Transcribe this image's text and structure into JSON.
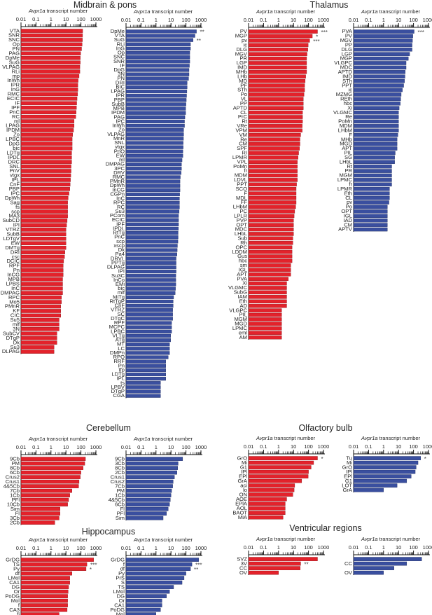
{
  "chart_data": {
    "type": "bar",
    "orientation": "horizontal",
    "x_scale": "log",
    "xlim": [
      0.01,
      1000
    ],
    "tick_labels": [
      "0.01",
      "0.1",
      "1",
      "10",
      "100",
      "1000"
    ],
    "axis_label_gene": "Avpr1a",
    "axis_label_rest": " transcript number",
    "colors": {
      "red": "#e3222b",
      "blue": "#3a4f9f"
    },
    "sections": [
      {
        "title": "Midbrain & pons",
        "panels": [
          {
            "color": "red",
            "labels": [
              "VTA",
              "SNR",
              "SNC",
              "Op",
              "PN",
              "PAG",
              "DpMe",
              "SuG",
              "VLPAG",
              "RLi",
              "mp",
              "InWh",
              "IPR",
              "InG",
              "RMC",
              "ECIC",
              "IF",
              "IPF",
              "PnC",
              "RC",
              "ml",
              "LPAG",
              "IPDM",
              "Zo",
              "LPBC",
              "DpG",
              "bic",
              "LDTg",
              "IPDL",
              "DRC",
              "SNL",
              "PnV",
              "vtgx",
              "IPL",
              "CnF",
              "PBP",
              "IPC",
              "DpWh",
              "Sag",
              "fs",
              "scp",
              "MA3",
              "SubCD",
              "IPI",
              "VTRZ",
              "SubB",
              "LDTgV",
              "EW",
              "DMTg",
              "DRI",
              "csc",
              "DCIC",
              "RPF",
              "Pn",
              "InCG",
              "MPB",
              "LPBS",
              "InC",
              "DMPAG",
              "RPC",
              "Mo5",
              "PMnR",
              "KF",
              "CIC",
              "Su5",
              "mlf",
              "3N",
              "SubCV",
              "DTgP",
              "Dk",
              "Su3",
              "DLPAG"
            ],
            "values": [
              130,
              128,
              125,
              120,
              110,
              95,
              90,
              90,
              85,
              85,
              75,
              65,
              62,
              62,
              60,
              55,
              52,
              50,
              48,
              45,
              35,
              35,
              32,
              28,
              26,
              26,
              26,
              24,
              24,
              24,
              22,
              22,
              21,
              20,
              19,
              18,
              16,
              14,
              13,
              13,
              13,
              13,
              12,
              11,
              10,
              10,
              10,
              10,
              10,
              8.5,
              8,
              7,
              6.5,
              6.5,
              6.5,
              6,
              6,
              6,
              6,
              5,
              5,
              4.5,
              4.5,
              4.5,
              3.5,
              3.5,
              3.5,
              2.5,
              2.5,
              2.5,
              1.6,
              1.6
            ],
            "annotations": []
          },
          {
            "color": "blue",
            "labels": [
              "DpMe",
              "VTA",
              "SuG",
              "RLi",
              "InG",
              "Op",
              "SNC",
              "SNR",
              "IF",
              "DpG",
              "3N",
              "PN",
              "DRI",
              "BIC",
              "LPAG",
              "IPR",
              "PBP",
              "SubB",
              "MPB",
              "IPDM",
              "PAG",
              "IPC",
              "InWh",
              "Zo",
              "VLPAG",
              "MnR",
              "SNL",
              "vtgx",
              "PnO",
              "EW",
              "ml",
              "DMPAG",
              "3PC",
              "DRV",
              "RMC",
              "PMnR",
              "DpWh",
              "InCG",
              "CGPn",
              "InC",
              "RPC",
              "RC",
              "Su3",
              "PCom",
              "ECIC",
              "IPF",
              "IPDL",
              "RtTg",
              "PnC",
              "scp",
              "xscp",
              "Dk",
              "Pa4",
              "DRVL",
              "PPTg",
              "DLPAG",
              "IPI",
              "Su3C",
              "InCo",
              "EMi",
              "bic",
              "mlf",
              "MiTg",
              "RtTgP",
              "CnF",
              "VTRZ",
              "SC",
              "DTgC",
              "RPF",
              "MCPC",
              "LPBC",
              "VLTg",
              "ATg",
              "MT",
              "LC",
              "DMPn",
              "RPO",
              "RRF",
              "Pn",
              "tfp",
              "LDTg",
              "IPL",
              "ts",
              "LPBV",
              "DTgP",
              "CGA"
            ],
            "values": [
              500,
              400,
              300,
              200,
              200,
              180,
              180,
              180,
              170,
              160,
              160,
              150,
              120,
              120,
              115,
              110,
              105,
              100,
              95,
              95,
              85,
              80,
              80,
              70,
              70,
              68,
              65,
              65,
              62,
              62,
              55,
              50,
              50,
              48,
              42,
              40,
              40,
              40,
              38,
              37,
              37,
              37,
              35,
              32,
              32,
              32,
              31,
              30,
              30,
              29,
              27,
              26,
              25,
              22,
              22,
              22,
              22,
              21,
              21,
              21,
              20,
              19,
              15,
              14,
              14,
              13,
              13,
              13,
              11,
              11,
              11,
              9.5,
              9.5,
              8,
              8,
              8,
              6.5,
              4.5,
              4.5,
              4.5,
              4.5,
              4.5,
              2,
              2,
              2,
              2
            ],
            "annotations": [
              {
                "label": "DpMe",
                "stars": "**"
              },
              {
                "label": "SuG",
                "stars": "**"
              }
            ]
          }
        ]
      },
      {
        "title": "Thalamus",
        "panels": [
          {
            "color": "red",
            "labels": [
              "PV",
              "MGP",
              "pv",
              "ic",
              "DLG",
              "MGV",
              "PR",
              "LGP",
              "IMD",
              "MHb",
              "LHb",
              "MD",
              "PF",
              "STh",
              "Po",
              "VL",
              "PP",
              "APTD",
              "CL",
              "PrC",
              "Rt",
              "VRe",
              "VPM",
              "VM",
              "Re",
              "CM",
              "SPF",
              "RI",
              "LPMR",
              "VPL",
              "PoMn",
              "fr",
              "MDM",
              "LDVL",
              "PPT",
              "SCO",
              "F",
              "MDL",
              "FF",
              "LHbM",
              "PC",
              "LPLR",
              "PVP",
              "OPT",
              "MDC",
              "LHbL",
              "Sub",
              "Rh",
              "OPC",
              "LDDM",
              "Gus",
              "hbc",
              "sm",
              "IGL",
              "APT",
              "PVA",
              "Xi",
              "VLGMC",
              "SubG",
              "IAM",
              "Eth",
              "AD",
              "VLGPC",
              "PIL",
              "MGM",
              "MGD",
              "LPMC",
              "eml",
              "AM"
            ],
            "values": [
              400,
              180,
              120,
              95,
              90,
              80,
              75,
              75,
              75,
              75,
              65,
              60,
              55,
              55,
              50,
              45,
              45,
              45,
              40,
              40,
              40,
              38,
              38,
              30,
              27,
              27,
              25,
              22,
              20,
              18,
              18,
              18,
              18,
              18,
              16,
              15,
              15,
              15,
              15,
              14,
              12,
              11,
              10,
              10,
              10,
              10,
              9,
              9,
              8,
              8,
              8,
              8,
              6.5,
              6.5,
              6.5,
              4.5,
              3.5,
              3.5,
              3.5,
              3.5,
              3.5,
              3.5,
              1.6,
              1.6,
              1.6,
              1.6,
              1.6,
              1.6,
              1.6
            ],
            "annotations": [
              {
                "label": "PV",
                "stars": "***"
              },
              {
                "label": "MGP",
                "stars": "*"
              },
              {
                "label": "pv",
                "stars": "***"
              }
            ]
          },
          {
            "color": "blue",
            "labels": [
              "PVA",
              "PV",
              "MGV",
              "PP",
              "DLG",
              "LGP",
              "MGP",
              "VLGPC",
              "MDC",
              "APTD",
              "IMD",
              "STh",
              "PPT",
              "ic",
              "MZMG",
              "REth",
              "hbc",
              "Xi",
              "VLGMC",
              "Re",
              "PoMn",
              "MDM",
              "LHbM",
              "F",
              "MHb",
              "MGD",
              "APT",
              "PIL",
              "SG",
              "LHbL",
              "Rt",
              "PR",
              "MGM",
              "LPMC",
              "fr",
              "LPMR",
              "Eth",
              "CL",
              "pv",
              "Po",
              "OPT",
              "IGL",
              "IAD",
              "CM",
              "APTV"
            ],
            "values": [
              110,
              90,
              85,
              80,
              80,
              55,
              45,
              32,
              32,
              28,
              27,
              25,
              22,
              18,
              15,
              14,
              13,
              11,
              10,
              10,
              10,
              10,
              10,
              9,
              8,
              8,
              8,
              6,
              5.5,
              5.5,
              3.5,
              3.5,
              3.5,
              3.5,
              3.5,
              2.5,
              2.5,
              2.5,
              2.3,
              1.8,
              1.8,
              1.8,
              1.8,
              1.8,
              1.8
            ],
            "annotations": [
              {
                "label": "PVA",
                "stars": "***"
              }
            ]
          }
        ]
      },
      {
        "title": "Cerebellum",
        "panels": [
          {
            "color": "red",
            "labels": [
              "9Cb",
              "PM",
              "8Cb",
              "6Cb",
              "Crus2",
              "Crus1",
              "4&5Cb",
              "7Cb",
              "1Cb",
              "PFl",
              "10Cb",
              "Sim",
              "Fl",
              "3Cb",
              "2Cb"
            ],
            "values": [
              200,
              180,
              140,
              100,
              90,
              75,
              70,
              25,
              18,
              15,
              13,
              4,
              4,
              3.5,
              1.8
            ],
            "annotations": []
          },
          {
            "color": "blue",
            "labels": [
              "9Cb",
              "3Cb",
              "8Cb",
              "2Cb",
              "Crus1",
              "Crus2",
              "7Cb",
              "PM",
              "1Cb",
              "4&5Cb",
              "6Cb",
              "Fl",
              "PFl",
              "Sim"
            ],
            "values": [
              60,
              30,
              28,
              25,
              17,
              14,
              13,
              11,
              10,
              9,
              8,
              6.5,
              5,
              3
            ],
            "annotations": []
          }
        ]
      },
      {
        "title": "Olfactory bulb",
        "panels": [
          {
            "color": "red",
            "labels": [
              "GrO",
              "Mi",
              "G1",
              "IPl",
              "EPl",
              "GrA",
              "aci",
              "lo",
              "ON",
              "AOE",
              "EPlA",
              "AOL",
              "BAOT",
              "MiA"
            ],
            "values": [
              400,
              220,
              150,
              100,
              95,
              35,
              12,
              11,
              9,
              3.5,
              2.8,
              2.8,
              2.8,
              2
            ],
            "annotations": [
              {
                "label": "GrO",
                "stars": "*"
              }
            ]
          },
          {
            "color": "blue",
            "labels": [
              "Tu",
              "Mi",
              "GrO",
              "IPl",
              "EPl",
              "G1",
              "LOT",
              "GrA"
            ],
            "values": [
              300,
              200,
              150,
              130,
              70,
              35,
              8,
              1
            ],
            "annotations": [
              {
                "label": "Tu",
                "stars": "*"
              }
            ]
          }
        ]
      },
      {
        "title": "Hippocampus",
        "panels": [
          {
            "color": "red",
            "labels": [
              "GrDG",
              "TS",
              "Py",
              "df",
              "LMol",
              "CA1",
              "DG",
              "Or",
              "PoDG",
              "Mol",
              "f",
              "CA3",
              "fi"
            ],
            "values": [
              700,
              250,
              220,
              25,
              18,
              18,
              15,
              14,
              13,
              13,
              13,
              12,
              3.5
            ],
            "annotations": [
              {
                "label": "TS",
                "stars": "***"
              },
              {
                "label": "Py",
                "stars": "*"
              }
            ]
          },
          {
            "color": "blue",
            "labels": [
              "GrDG",
              "f",
              "df",
              "Py",
              "PrS",
              "S",
              "TS",
              "LMol",
              "DG",
              "Or",
              "CA1",
              "PoDG",
              "Mol"
            ],
            "values": [
              700,
              250,
              200,
              100,
              75,
              55,
              15,
              8,
              5,
              2.5,
              2.5,
              2,
              1
            ],
            "annotations": [
              {
                "label": "f",
                "stars": "***"
              },
              {
                "label": "df",
                "stars": "**"
              }
            ]
          }
        ]
      },
      {
        "title": "Ventricular regions",
        "panels": [
          {
            "color": "red",
            "labels": [
              "SVZ",
              "3V",
              "CC",
              "OV"
            ],
            "values": [
              400,
              30,
              28,
              1
            ],
            "annotations": [
              {
                "label": "3V",
                "stars": "**"
              }
            ]
          },
          {
            "color": "blue",
            "labels": [
              "",
              "CC",
              "",
              "OV"
            ],
            "values": [
              350,
              35,
              5,
              1
            ],
            "annotations": []
          }
        ]
      }
    ]
  }
}
